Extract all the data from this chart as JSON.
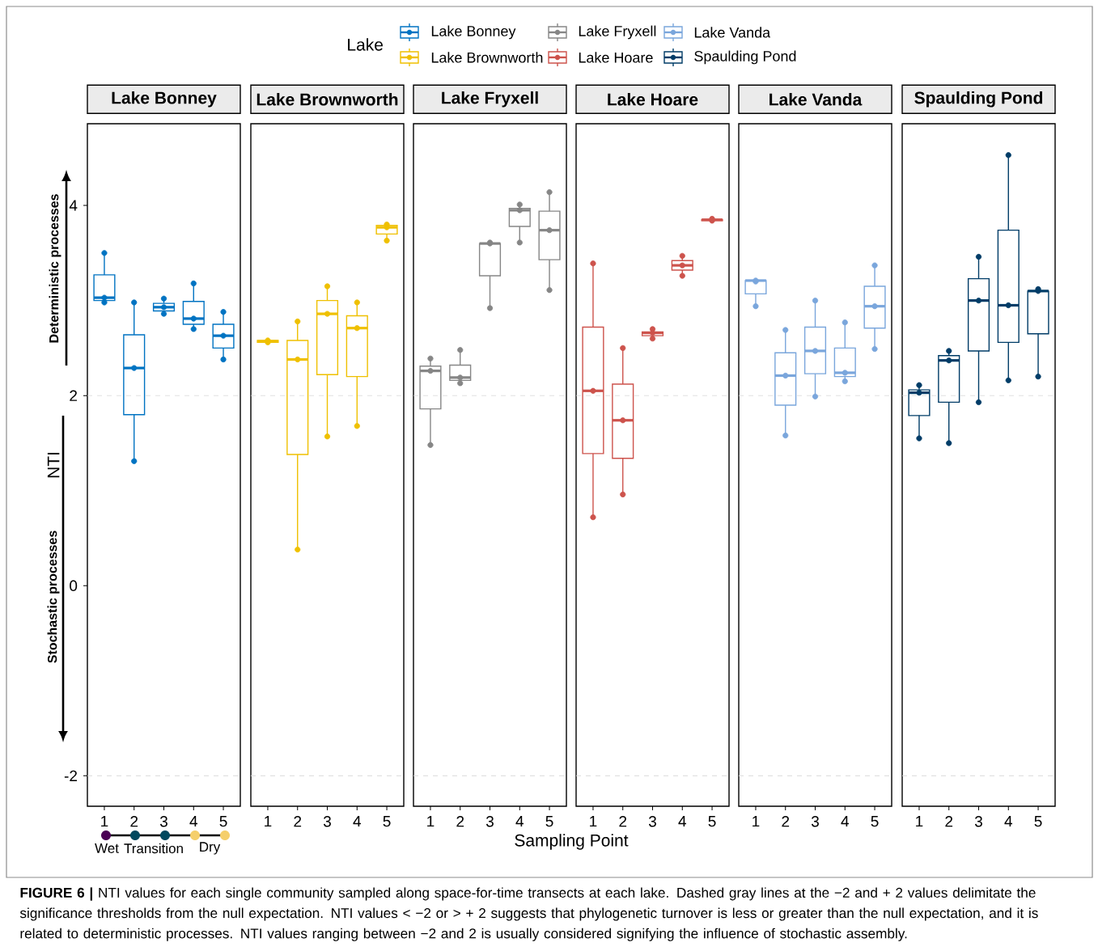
{
  "chart_data": [
    {
      "type": "box",
      "title": "Lake Bonney",
      "ylabel": "NTI",
      "legend": "top",
      "legend_title": "Lake",
      "categories": [
        "1",
        "2",
        "3",
        "4",
        "5"
      ],
      "ylim": [
        -2.32,
        4.86
      ],
      "yticks": [
        -2,
        0,
        2,
        4
      ],
      "ref_lines": [
        {
          "axis": "y",
          "value": -2,
          "color": "#d9d9d9",
          "line_style": "dashed"
        },
        {
          "axis": "y",
          "value": 2,
          "color": "#d9d9d9",
          "line_style": "dashed"
        }
      ],
      "annotations": [
        "Deterministic processes",
        "Stochastic processes",
        "Wet",
        "Transition",
        "Dry",
        "**FIGURE 6 |** NTI values for each single community sampled along space-for-time transects at each lake. Dashed gray lines at the −2 and + 2 values delimitate the significance thresholds from the null expectation. NTI values < −2 or > + 2 suggests that phylogenetic turnover is less or greater than the null expectation, and it is related to deterministic processes. NTI values ranging between −2 and 2 is usually considered signifying the influence of stochastic assembly."
      ],
      "series": [
        {
          "name": "Lake Bonney",
          "color": "#0073c2",
          "boxes": [
            {
              "low": 2.98,
              "q1": 3.0,
              "median": 3.03,
              "q3": 3.27,
              "high": 3.5
            },
            {
              "low": 1.31,
              "q1": 1.8,
              "median": 2.29,
              "q3": 2.64,
              "high": 2.98
            },
            {
              "low": 2.86,
              "q1": 2.89,
              "median": 2.93,
              "q3": 2.97,
              "high": 3.02
            },
            {
              "low": 2.7,
              "q1": 2.75,
              "median": 2.81,
              "q3": 2.99,
              "high": 3.18
            },
            {
              "low": 2.38,
              "q1": 2.5,
              "median": 2.63,
              "q3": 2.75,
              "high": 2.88
            }
          ]
        },
        {
          "type": "scatter",
          "color": "#0073c2",
          "x": [
            "1",
            "1",
            "1",
            "2",
            "2",
            "2",
            "3",
            "3",
            "3",
            "4",
            "4",
            "4",
            "5",
            "5",
            "5"
          ],
          "values": [
            2.98,
            3.03,
            3.5,
            1.31,
            2.29,
            2.98,
            2.86,
            2.93,
            3.02,
            2.7,
            2.81,
            3.18,
            2.38,
            2.63,
            2.88
          ]
        }
      ]
    },
    {
      "type": "box",
      "title": "Lake Brownworth",
      "tick_labels": "x",
      "categories": [
        "1",
        "2",
        "3",
        "4",
        "5"
      ],
      "ylim": [
        -2.32,
        4.86
      ],
      "ref_lines": [
        {
          "axis": "y",
          "value": -2,
          "color": "#d9d9d9",
          "line_style": "dashed"
        },
        {
          "axis": "y",
          "value": 2,
          "color": "#d9d9d9",
          "line_style": "dashed"
        }
      ],
      "series": [
        {
          "name": "Lake Brownworth",
          "color": "#efc000",
          "boxes": [
            {
              "low": 2.56,
              "q1": 2.56,
              "median": 2.57,
              "q3": 2.58,
              "high": 2.58
            },
            {
              "low": 0.38,
              "q1": 1.38,
              "median": 2.38,
              "q3": 2.58,
              "high": 2.78
            },
            {
              "low": 1.57,
              "q1": 2.22,
              "median": 2.86,
              "q3": 3.0,
              "high": 3.15
            },
            {
              "low": 1.68,
              "q1": 2.2,
              "median": 2.71,
              "q3": 2.84,
              "high": 2.98
            },
            {
              "low": 3.63,
              "q1": 3.7,
              "median": 3.77,
              "q3": 3.79,
              "high": 3.8
            }
          ]
        },
        {
          "type": "scatter",
          "color": "#efc000",
          "x": [
            "1",
            "1",
            "2",
            "2",
            "2",
            "3",
            "3",
            "3",
            "4",
            "4",
            "4",
            "5",
            "5",
            "5"
          ],
          "values": [
            2.56,
            2.58,
            0.38,
            2.38,
            2.78,
            1.57,
            2.86,
            3.15,
            1.68,
            2.71,
            2.98,
            3.63,
            3.77,
            3.8
          ]
        }
      ]
    },
    {
      "type": "box",
      "title": "Lake Fryxell",
      "tick_labels": "x",
      "categories": [
        "1",
        "2",
        "3",
        "4",
        "5"
      ],
      "ylim": [
        -2.32,
        4.86
      ],
      "ref_lines": [
        {
          "axis": "y",
          "value": -2,
          "color": "#d9d9d9",
          "line_style": "dashed"
        },
        {
          "axis": "y",
          "value": 2,
          "color": "#d9d9d9",
          "line_style": "dashed"
        }
      ],
      "series": [
        {
          "name": "Lake Fryxell",
          "color": "#868686",
          "boxes": [
            {
              "low": 1.48,
              "q1": 1.86,
              "median": 2.26,
              "q3": 2.31,
              "high": 2.39
            },
            {
              "low": 2.13,
              "q1": 2.16,
              "median": 2.19,
              "q3": 2.32,
              "high": 2.48
            },
            {
              "low": 2.92,
              "q1": 3.26,
              "median": 3.6,
              "q3": 3.6,
              "high": 3.61
            },
            {
              "low": 3.61,
              "q1": 3.78,
              "median": 3.95,
              "q3": 3.97,
              "high": 4.01
            },
            {
              "low": 3.11,
              "q1": 3.43,
              "median": 3.74,
              "q3": 3.94,
              "high": 4.14
            }
          ]
        },
        {
          "type": "scatter",
          "color": "#868686",
          "x": [
            "1",
            "1",
            "1",
            "2",
            "2",
            "2",
            "3",
            "3",
            "3",
            "4",
            "4",
            "4",
            "5",
            "5",
            "5"
          ],
          "values": [
            1.48,
            2.26,
            2.39,
            2.13,
            2.19,
            2.48,
            2.92,
            3.6,
            3.61,
            3.61,
            3.95,
            4.01,
            3.11,
            3.74,
            4.14
          ]
        }
      ]
    },
    {
      "type": "box",
      "title": "Lake Hoare",
      "xlabel": "Sampling Point",
      "tick_labels": "x",
      "categories": [
        "1",
        "2",
        "3",
        "4",
        "5"
      ],
      "ylim": [
        -2.32,
        4.86
      ],
      "ref_lines": [
        {
          "axis": "y",
          "value": -2,
          "color": "#d9d9d9",
          "line_style": "dashed"
        },
        {
          "axis": "y",
          "value": 2,
          "color": "#d9d9d9",
          "line_style": "dashed"
        }
      ],
      "series": [
        {
          "name": "Lake Hoare",
          "color": "#cd534c",
          "boxes": [
            {
              "low": 0.72,
              "q1": 1.39,
              "median": 2.05,
              "q3": 2.72,
              "high": 3.39
            },
            {
              "low": 0.96,
              "q1": 1.34,
              "median": 1.74,
              "q3": 2.12,
              "high": 2.5
            },
            {
              "low": 2.6,
              "q1": 2.63,
              "median": 2.66,
              "q3": 2.67,
              "high": 2.7
            },
            {
              "low": 3.26,
              "q1": 3.32,
              "median": 3.37,
              "q3": 3.42,
              "high": 3.47
            },
            {
              "low": 3.84,
              "q1": 3.84,
              "median": 3.85,
              "q3": 3.85,
              "high": 3.86
            }
          ]
        },
        {
          "type": "scatter",
          "color": "#cd534c",
          "x": [
            "1",
            "1",
            "1",
            "2",
            "2",
            "2",
            "3",
            "3",
            "3",
            "4",
            "4",
            "4",
            "5",
            "5"
          ],
          "values": [
            0.72,
            2.05,
            3.39,
            0.96,
            1.74,
            2.5,
            2.6,
            2.66,
            2.7,
            3.26,
            3.37,
            3.47,
            3.84,
            3.86
          ]
        }
      ]
    },
    {
      "type": "box",
      "title": "Lake Vanda",
      "tick_labels": "x",
      "categories": [
        "1",
        "2",
        "3",
        "4",
        "5"
      ],
      "ylim": [
        -2.32,
        4.86
      ],
      "ref_lines": [
        {
          "axis": "y",
          "value": -2,
          "color": "#d9d9d9",
          "line_style": "dashed"
        },
        {
          "axis": "y",
          "value": 2,
          "color": "#d9d9d9",
          "line_style": "dashed"
        }
      ],
      "series": [
        {
          "name": "Lake Vanda",
          "color": "#7aa6dc",
          "boxes": [
            {
              "low": 2.94,
              "q1": 3.07,
              "median": 3.21,
              "q3": 3.21,
              "high": 3.21
            },
            {
              "low": 1.58,
              "q1": 1.9,
              "median": 2.21,
              "q3": 2.45,
              "high": 2.69
            },
            {
              "low": 1.99,
              "q1": 2.23,
              "median": 2.47,
              "q3": 2.72,
              "high": 3.0
            },
            {
              "low": 2.15,
              "q1": 2.2,
              "median": 2.24,
              "q3": 2.5,
              "high": 2.77
            },
            {
              "low": 2.49,
              "q1": 2.71,
              "median": 2.94,
              "q3": 3.15,
              "high": 3.37
            }
          ]
        },
        {
          "type": "scatter",
          "color": "#7aa6dc",
          "x": [
            "1",
            "1",
            "1",
            "2",
            "2",
            "2",
            "3",
            "3",
            "3",
            "4",
            "4",
            "4",
            "5",
            "5",
            "5"
          ],
          "values": [
            2.94,
            3.2,
            3.21,
            1.58,
            2.21,
            2.69,
            1.99,
            2.47,
            3.0,
            2.15,
            2.24,
            2.77,
            2.49,
            2.94,
            3.37
          ]
        }
      ]
    },
    {
      "type": "box",
      "title": "Spaulding Pond",
      "tick_labels": "x",
      "categories": [
        "1",
        "2",
        "3",
        "4",
        "5"
      ],
      "ylim": [
        -2.32,
        4.86
      ],
      "ref_lines": [
        {
          "axis": "y",
          "value": -2,
          "color": "#d9d9d9",
          "line_style": "dashed"
        },
        {
          "axis": "y",
          "value": 2,
          "color": "#d9d9d9",
          "line_style": "dashed"
        }
      ],
      "series": [
        {
          "name": "Spaulding Pond",
          "color": "#003c67",
          "boxes": [
            {
              "low": 1.55,
              "q1": 1.79,
              "median": 2.03,
              "q3": 2.06,
              "high": 2.11
            },
            {
              "low": 1.5,
              "q1": 1.93,
              "median": 2.37,
              "q3": 2.42,
              "high": 2.47
            },
            {
              "low": 1.93,
              "q1": 2.47,
              "median": 3.0,
              "q3": 3.23,
              "high": 3.46
            },
            {
              "low": 2.16,
              "q1": 2.56,
              "median": 2.95,
              "q3": 3.74,
              "high": 4.53
            },
            {
              "low": 2.2,
              "q1": 2.65,
              "median": 3.1,
              "q3": 3.1,
              "high": 3.12
            }
          ]
        },
        {
          "type": "scatter",
          "color": "#003c67",
          "x": [
            "1",
            "1",
            "1",
            "2",
            "2",
            "2",
            "3",
            "3",
            "3",
            "4",
            "4",
            "4",
            "5",
            "5",
            "5"
          ],
          "values": [
            1.55,
            2.03,
            2.11,
            1.5,
            2.37,
            2.47,
            1.93,
            3.0,
            3.46,
            2.16,
            2.95,
            4.53,
            2.2,
            3.1,
            3.12
          ]
        }
      ]
    }
  ]
}
